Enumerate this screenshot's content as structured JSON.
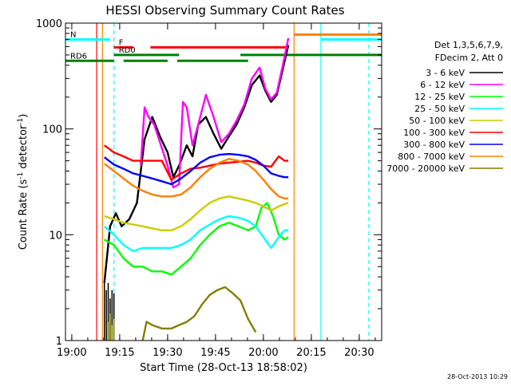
{
  "chart_data": {
    "type": "line",
    "title": "HESSI Observing Summary Count Rates",
    "xlabel": "Start Time (28-Oct-13 18:58:02)",
    "ylabel_parts": [
      "Count Rate (s",
      "-1",
      " detector",
      "-1",
      ")"
    ],
    "footer_date": "28-Oct-2013 10:29",
    "y_scale": "log",
    "ylim": [
      1,
      1000
    ],
    "y_ticks": [
      {
        "value": 1,
        "label": "1"
      },
      {
        "value": 10,
        "label": "10"
      },
      {
        "value": 100,
        "label": "100"
      },
      {
        "value": 1000,
        "label": "1000"
      }
    ],
    "xlim_min": [
      18.967,
      20.617
    ],
    "x_ticks": [
      {
        "value": 19.0,
        "label": "19:00"
      },
      {
        "value": 19.25,
        "label": "19:15"
      },
      {
        "value": 19.5,
        "label": "19:30"
      },
      {
        "value": 19.75,
        "label": "19:45"
      },
      {
        "value": 20.0,
        "label": "20:00"
      },
      {
        "value": 20.25,
        "label": "20:15"
      },
      {
        "value": 20.5,
        "label": "20:30"
      }
    ],
    "legend_header": [
      "Det 1,3,5,6,7,9,",
      "FDecim 2, Att 0"
    ],
    "series": [
      {
        "name": "3 - 6 keV",
        "color": "#000000",
        "x": [
          19.17,
          19.2,
          19.23,
          19.26,
          19.3,
          19.34,
          19.38,
          19.42,
          19.46,
          19.5,
          19.53,
          19.56,
          19.6,
          19.63,
          19.66,
          19.7,
          19.74,
          19.78,
          19.82,
          19.86,
          19.9,
          19.94,
          19.98,
          20.01,
          20.04,
          20.07,
          20.1,
          20.13
        ],
        "y": [
          3.5,
          12,
          16,
          12,
          14,
          20,
          80,
          130,
          85,
          60,
          35,
          45,
          70,
          55,
          110,
          130,
          90,
          65,
          85,
          110,
          160,
          260,
          320,
          230,
          180,
          210,
          360,
          620
        ]
      },
      {
        "name": "6 - 12 keV",
        "color": "#ff00ff",
        "x": [
          19.36,
          19.38,
          19.4,
          19.43,
          19.46,
          19.5,
          19.53,
          19.56,
          19.58,
          19.6,
          19.63,
          19.66,
          19.7,
          19.74,
          19.78,
          19.82,
          19.86,
          19.9,
          19.94,
          19.98,
          20.01,
          20.04,
          20.07,
          20.1,
          20.13
        ],
        "y": [
          45,
          160,
          130,
          110,
          75,
          45,
          28,
          30,
          180,
          160,
          70,
          110,
          210,
          130,
          75,
          90,
          120,
          170,
          300,
          380,
          240,
          190,
          220,
          390,
          720
        ]
      },
      {
        "name": "12 - 25 keV",
        "color": "#00ff00",
        "x": [
          19.17,
          19.22,
          19.27,
          19.32,
          19.37,
          19.42,
          19.47,
          19.52,
          19.57,
          19.62,
          19.67,
          19.72,
          19.77,
          19.82,
          19.87,
          19.92,
          19.96,
          19.99,
          20.02,
          20.05,
          20.08,
          20.11,
          20.13
        ],
        "y": [
          9,
          8,
          6,
          5,
          5,
          4.5,
          4.5,
          4.2,
          5,
          6,
          8,
          10,
          12,
          13,
          12,
          11,
          12,
          18,
          20,
          15,
          10,
          9,
          9.5
        ]
      },
      {
        "name": "25 - 50 keV",
        "color": "#00ffff",
        "x": [
          19.17,
          19.22,
          19.27,
          19.32,
          19.37,
          19.42,
          19.47,
          19.52,
          19.57,
          19.62,
          19.67,
          19.72,
          19.77,
          19.82,
          19.87,
          19.92,
          19.96,
          20.0,
          20.04,
          20.08,
          20.11,
          20.13
        ],
        "y": [
          12,
          10,
          8,
          7,
          7.5,
          7.5,
          7.5,
          7.5,
          8,
          9,
          11,
          12.5,
          14,
          15,
          14.5,
          13.5,
          12,
          9.5,
          7.5,
          9.5,
          11,
          11
        ]
      },
      {
        "name": "50 - 100 keV",
        "color": "#cccc00",
        "x": [
          19.17,
          19.22,
          19.27,
          19.32,
          19.37,
          19.42,
          19.47,
          19.52,
          19.57,
          19.62,
          19.67,
          19.72,
          19.77,
          19.82,
          19.87,
          19.92,
          19.96,
          20.0,
          20.04,
          20.08,
          20.11,
          20.13
        ],
        "y": [
          15,
          14,
          13,
          12.5,
          12,
          11.5,
          11,
          11,
          12,
          14,
          17,
          20,
          22,
          23,
          22,
          21,
          20,
          18.5,
          17,
          18.5,
          19.5,
          20
        ]
      },
      {
        "name": "100 - 300 keV",
        "color": "#ff0000",
        "x": [
          19.17,
          19.22,
          19.27,
          19.32,
          19.37,
          19.42,
          19.47,
          19.52,
          19.57,
          19.62,
          19.67,
          19.72,
          19.77,
          19.82,
          19.87,
          19.92,
          19.96,
          20.0,
          20.04,
          20.08,
          20.11,
          20.13
        ],
        "y": [
          70,
          60,
          55,
          50,
          50,
          50,
          50,
          33,
          38,
          42,
          43,
          45,
          47,
          48,
          49,
          50,
          48,
          45,
          44,
          55,
          50,
          50
        ]
      },
      {
        "name": "300 - 800 keV",
        "color": "#0000ff",
        "x": [
          19.17,
          19.22,
          19.27,
          19.32,
          19.37,
          19.42,
          19.47,
          19.52,
          19.57,
          19.62,
          19.67,
          19.72,
          19.77,
          19.82,
          19.87,
          19.92,
          19.96,
          20.0,
          20.04,
          20.08,
          20.11,
          20.13
        ],
        "y": [
          54,
          46,
          42,
          38,
          36,
          34,
          32,
          30,
          34,
          40,
          48,
          54,
          57,
          58,
          57,
          55,
          51,
          45,
          38,
          36,
          35,
          35
        ]
      },
      {
        "name": "800 - 7000 keV",
        "color": "#ff8000",
        "x": [
          19.17,
          19.22,
          19.27,
          19.32,
          19.37,
          19.42,
          19.47,
          19.52,
          19.57,
          19.62,
          19.67,
          19.72,
          19.77,
          19.82,
          19.87,
          19.92,
          19.96,
          20.0,
          20.04,
          20.08,
          20.11,
          20.13
        ],
        "y": [
          47,
          40,
          34,
          29,
          26,
          24,
          23,
          23,
          24,
          28,
          35,
          42,
          48,
          52,
          50,
          46,
          40,
          33,
          27,
          23,
          22,
          22
        ]
      },
      {
        "name": "7000 - 20000 keV",
        "color": "#808000",
        "x": [
          19.37,
          19.39,
          19.42,
          19.47,
          19.52,
          19.56,
          19.6,
          19.64,
          19.68,
          19.72,
          19.76,
          19.8,
          19.84,
          19.88,
          19.92,
          19.96
        ],
        "y": [
          1,
          1.5,
          1.4,
          1.3,
          1.3,
          1.4,
          1.5,
          1.7,
          2.2,
          2.7,
          3.0,
          3.2,
          2.8,
          2.4,
          1.6,
          1.2
        ]
      }
    ],
    "black_spikes": {
      "x": [
        19.17,
        19.18,
        19.19,
        19.2,
        19.21,
        19.22
      ],
      "y": [
        3.8,
        3.0,
        3.5,
        2.5,
        3.0,
        2.8
      ]
    },
    "olive_spikes": {
      "x": [
        19.19,
        19.2,
        19.21,
        19.22
      ],
      "y": [
        1.5,
        1.8,
        1.4,
        1.6
      ]
    },
    "state_bars": [
      {
        "label": "N",
        "color": "#00ffff",
        "y": 700,
        "segments": [
          [
            18.967,
            19.2
          ]
        ]
      },
      {
        "label": "F",
        "color": "#ff0000",
        "y": 590,
        "segments": [
          [
            19.22,
            19.32
          ],
          [
            19.41,
            20.13
          ]
        ]
      },
      {
        "label": "RD0",
        "color": "#008000",
        "y": 500,
        "segments": [
          [
            19.22,
            19.56
          ],
          [
            19.88,
            20.617
          ]
        ]
      },
      {
        "label": "RD6",
        "color": "#008000",
        "y": 440,
        "segments": [
          [
            18.967,
            19.22
          ],
          [
            19.27,
            19.5
          ],
          [
            19.55,
            19.92
          ]
        ]
      },
      {
        "label": "",
        "color": "#00ffff",
        "y": 700,
        "segments": [
          [
            20.3,
            20.617
          ]
        ]
      },
      {
        "label": "",
        "color": "#ff8000",
        "y": 780,
        "segments": [
          [
            20.16,
            20.617
          ]
        ]
      }
    ],
    "vlines": [
      {
        "x": 19.13,
        "color": "#ff0000",
        "style": "solid"
      },
      {
        "x": 19.16,
        "color": "#ff8000",
        "style": "solid"
      },
      {
        "x": 19.22,
        "color": "#00ffff",
        "style": "dashed"
      },
      {
        "x": 20.16,
        "color": "#ff8000",
        "style": "solid"
      },
      {
        "x": 20.3,
        "color": "#00ffff",
        "style": "solid"
      },
      {
        "x": 20.55,
        "color": "#00ffff",
        "style": "dashed"
      }
    ]
  }
}
